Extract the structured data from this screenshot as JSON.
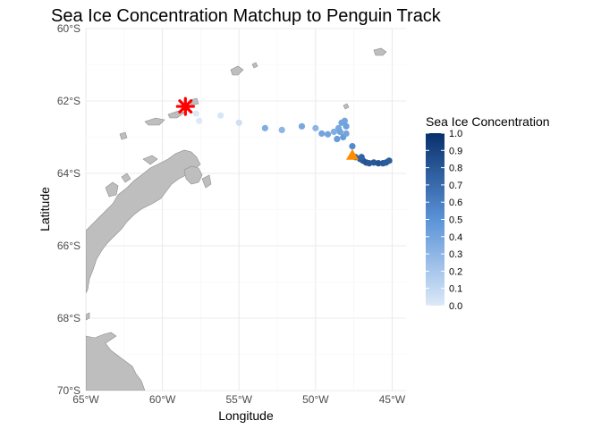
{
  "figure": {
    "title": "Sea Ice Concentration Matchup to Penguin Track",
    "xlabel": "Longitude",
    "ylabel": "Latitude"
  },
  "legend": {
    "title": "Sea Ice Concentration",
    "position": "right",
    "ticks": [
      "1.0",
      "0.9",
      "0.8",
      "0.7",
      "0.6",
      "0.5",
      "0.4",
      "0.3",
      "0.2",
      "0.1",
      "0.0"
    ],
    "color_low": "#dce9f8",
    "color_high": "#08306b"
  },
  "chart_data": {
    "type": "scatter",
    "x_ticks": [
      {
        "value": -65,
        "label": "65°W"
      },
      {
        "value": -60,
        "label": "60°W"
      },
      {
        "value": -55,
        "label": "55°W"
      },
      {
        "value": -50,
        "label": "50°W"
      },
      {
        "value": -45,
        "label": "45°W"
      }
    ],
    "y_ticks": [
      {
        "value": -60,
        "label": "60°S"
      },
      {
        "value": -62,
        "label": "62°S"
      },
      {
        "value": -64,
        "label": "64°S"
      },
      {
        "value": -66,
        "label": "66°S"
      },
      {
        "value": -68,
        "label": "68°S"
      },
      {
        "value": -70,
        "label": "70°S"
      }
    ],
    "xlim": [
      -65,
      -44.5
    ],
    "ylim": [
      -70,
      -60
    ],
    "grid": true,
    "start_marker": {
      "lon": -58.5,
      "lat": -62.15,
      "shape": "asterisk",
      "color": "#ff0000"
    },
    "end_marker": {
      "lon": -47.6,
      "lat": -63.5,
      "shape": "triangle",
      "color": "#ff8c00"
    },
    "points": [
      {
        "lon": -57.8,
        "lat": -62.35,
        "ice": 0.0
      },
      {
        "lon": -57.6,
        "lat": -62.55,
        "ice": 0.0
      },
      {
        "lon": -56.2,
        "lat": -62.4,
        "ice": 0.02
      },
      {
        "lon": -55.0,
        "lat": -62.6,
        "ice": 0.05
      },
      {
        "lon": -53.3,
        "lat": -62.75,
        "ice": 0.35
      },
      {
        "lon": -52.2,
        "lat": -62.8,
        "ice": 0.3
      },
      {
        "lon": -50.9,
        "lat": -62.7,
        "ice": 0.38
      },
      {
        "lon": -50.0,
        "lat": -62.75,
        "ice": 0.3
      },
      {
        "lon": -49.6,
        "lat": -62.9,
        "ice": 0.4
      },
      {
        "lon": -49.2,
        "lat": -62.92,
        "ice": 0.4
      },
      {
        "lon": -48.8,
        "lat": -62.85,
        "ice": 0.35
      },
      {
        "lon": -48.5,
        "lat": -62.75,
        "ice": 0.38
      },
      {
        "lon": -48.3,
        "lat": -62.6,
        "ice": 0.4
      },
      {
        "lon": -48.1,
        "lat": -62.55,
        "ice": 0.4
      },
      {
        "lon": -48.0,
        "lat": -62.7,
        "ice": 0.42
      },
      {
        "lon": -48.4,
        "lat": -62.85,
        "ice": 0.4
      },
      {
        "lon": -48.2,
        "lat": -63.0,
        "ice": 0.45
      },
      {
        "lon": -48.0,
        "lat": -62.9,
        "ice": 0.4
      },
      {
        "lon": -48.6,
        "lat": -63.05,
        "ice": 0.45
      },
      {
        "lon": -47.6,
        "lat": -63.25,
        "ice": 0.55
      },
      {
        "lon": -47.4,
        "lat": -63.55,
        "ice": 0.75
      },
      {
        "lon": -47.1,
        "lat": -63.6,
        "ice": 0.78
      },
      {
        "lon": -46.9,
        "lat": -63.65,
        "ice": 0.8
      },
      {
        "lon": -46.7,
        "lat": -63.7,
        "ice": 0.82
      },
      {
        "lon": -46.5,
        "lat": -63.72,
        "ice": 0.8
      },
      {
        "lon": -46.2,
        "lat": -63.7,
        "ice": 0.8
      },
      {
        "lon": -45.9,
        "lat": -63.72,
        "ice": 0.82
      },
      {
        "lon": -45.6,
        "lat": -63.72,
        "ice": 0.8
      },
      {
        "lon": -45.4,
        "lat": -63.7,
        "ice": 0.78
      },
      {
        "lon": -45.2,
        "lat": -63.65,
        "ice": 0.78
      },
      {
        "lon": -47.0,
        "lat": -63.55,
        "ice": 0.75
      }
    ]
  }
}
